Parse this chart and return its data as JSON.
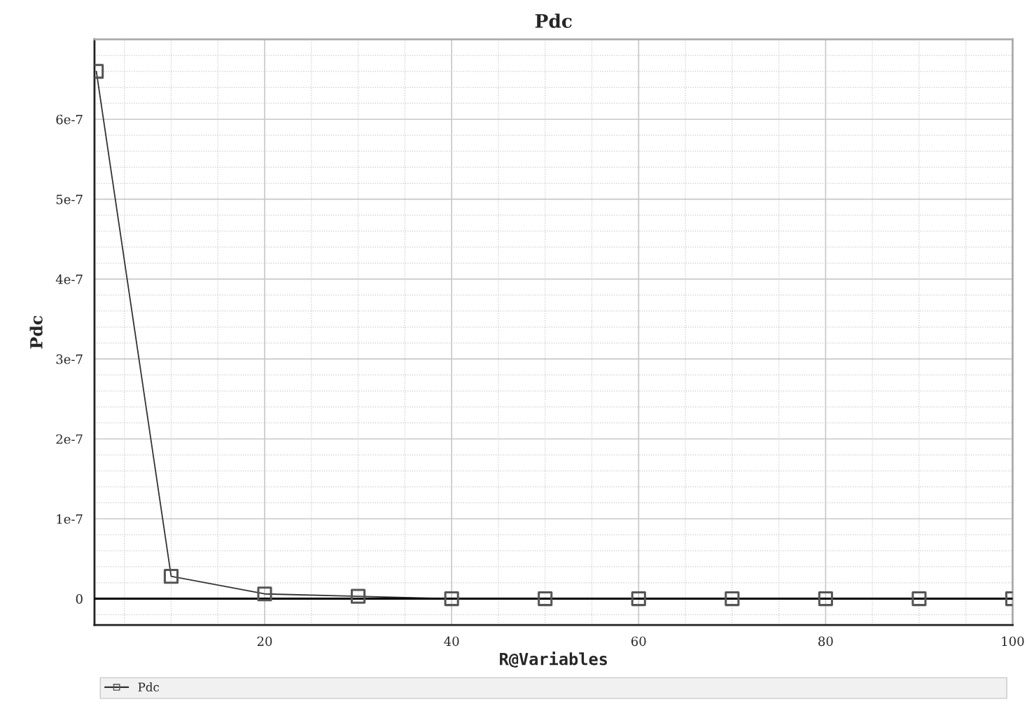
{
  "chart_data": {
    "type": "line",
    "title": "Pdc",
    "xlabel": "R@Variables",
    "ylabel": "Pdc",
    "x": [
      2,
      10,
      20,
      30,
      40,
      50,
      60,
      70,
      80,
      90,
      100
    ],
    "series": [
      {
        "name": "Pdc",
        "color": "#333333",
        "values": [
          6.6e-07,
          2.8e-08,
          6e-09,
          3e-09,
          0,
          0,
          0,
          0,
          0,
          0,
          0
        ]
      }
    ],
    "xlim": [
      1.8,
      100
    ],
    "xticks": [
      20,
      40,
      60,
      80,
      100
    ],
    "ylim": [
      -3.3e-08,
      7e-07
    ],
    "yticks": [
      {
        "value": 0,
        "label": "0"
      },
      {
        "value": 1e-07,
        "label": "1e-7"
      },
      {
        "value": 2e-07,
        "label": "2e-7"
      },
      {
        "value": 3e-07,
        "label": "3e-7"
      },
      {
        "value": 4e-07,
        "label": "4e-7"
      },
      {
        "value": 5e-07,
        "label": "5e-7"
      },
      {
        "value": 6e-07,
        "label": "6e-7"
      }
    ],
    "ref_lines": [
      {
        "axis": "y",
        "value": 0,
        "color": "#000000"
      }
    ],
    "grid": true,
    "legend": "bottom",
    "marker": "square",
    "line_style": "solid"
  }
}
